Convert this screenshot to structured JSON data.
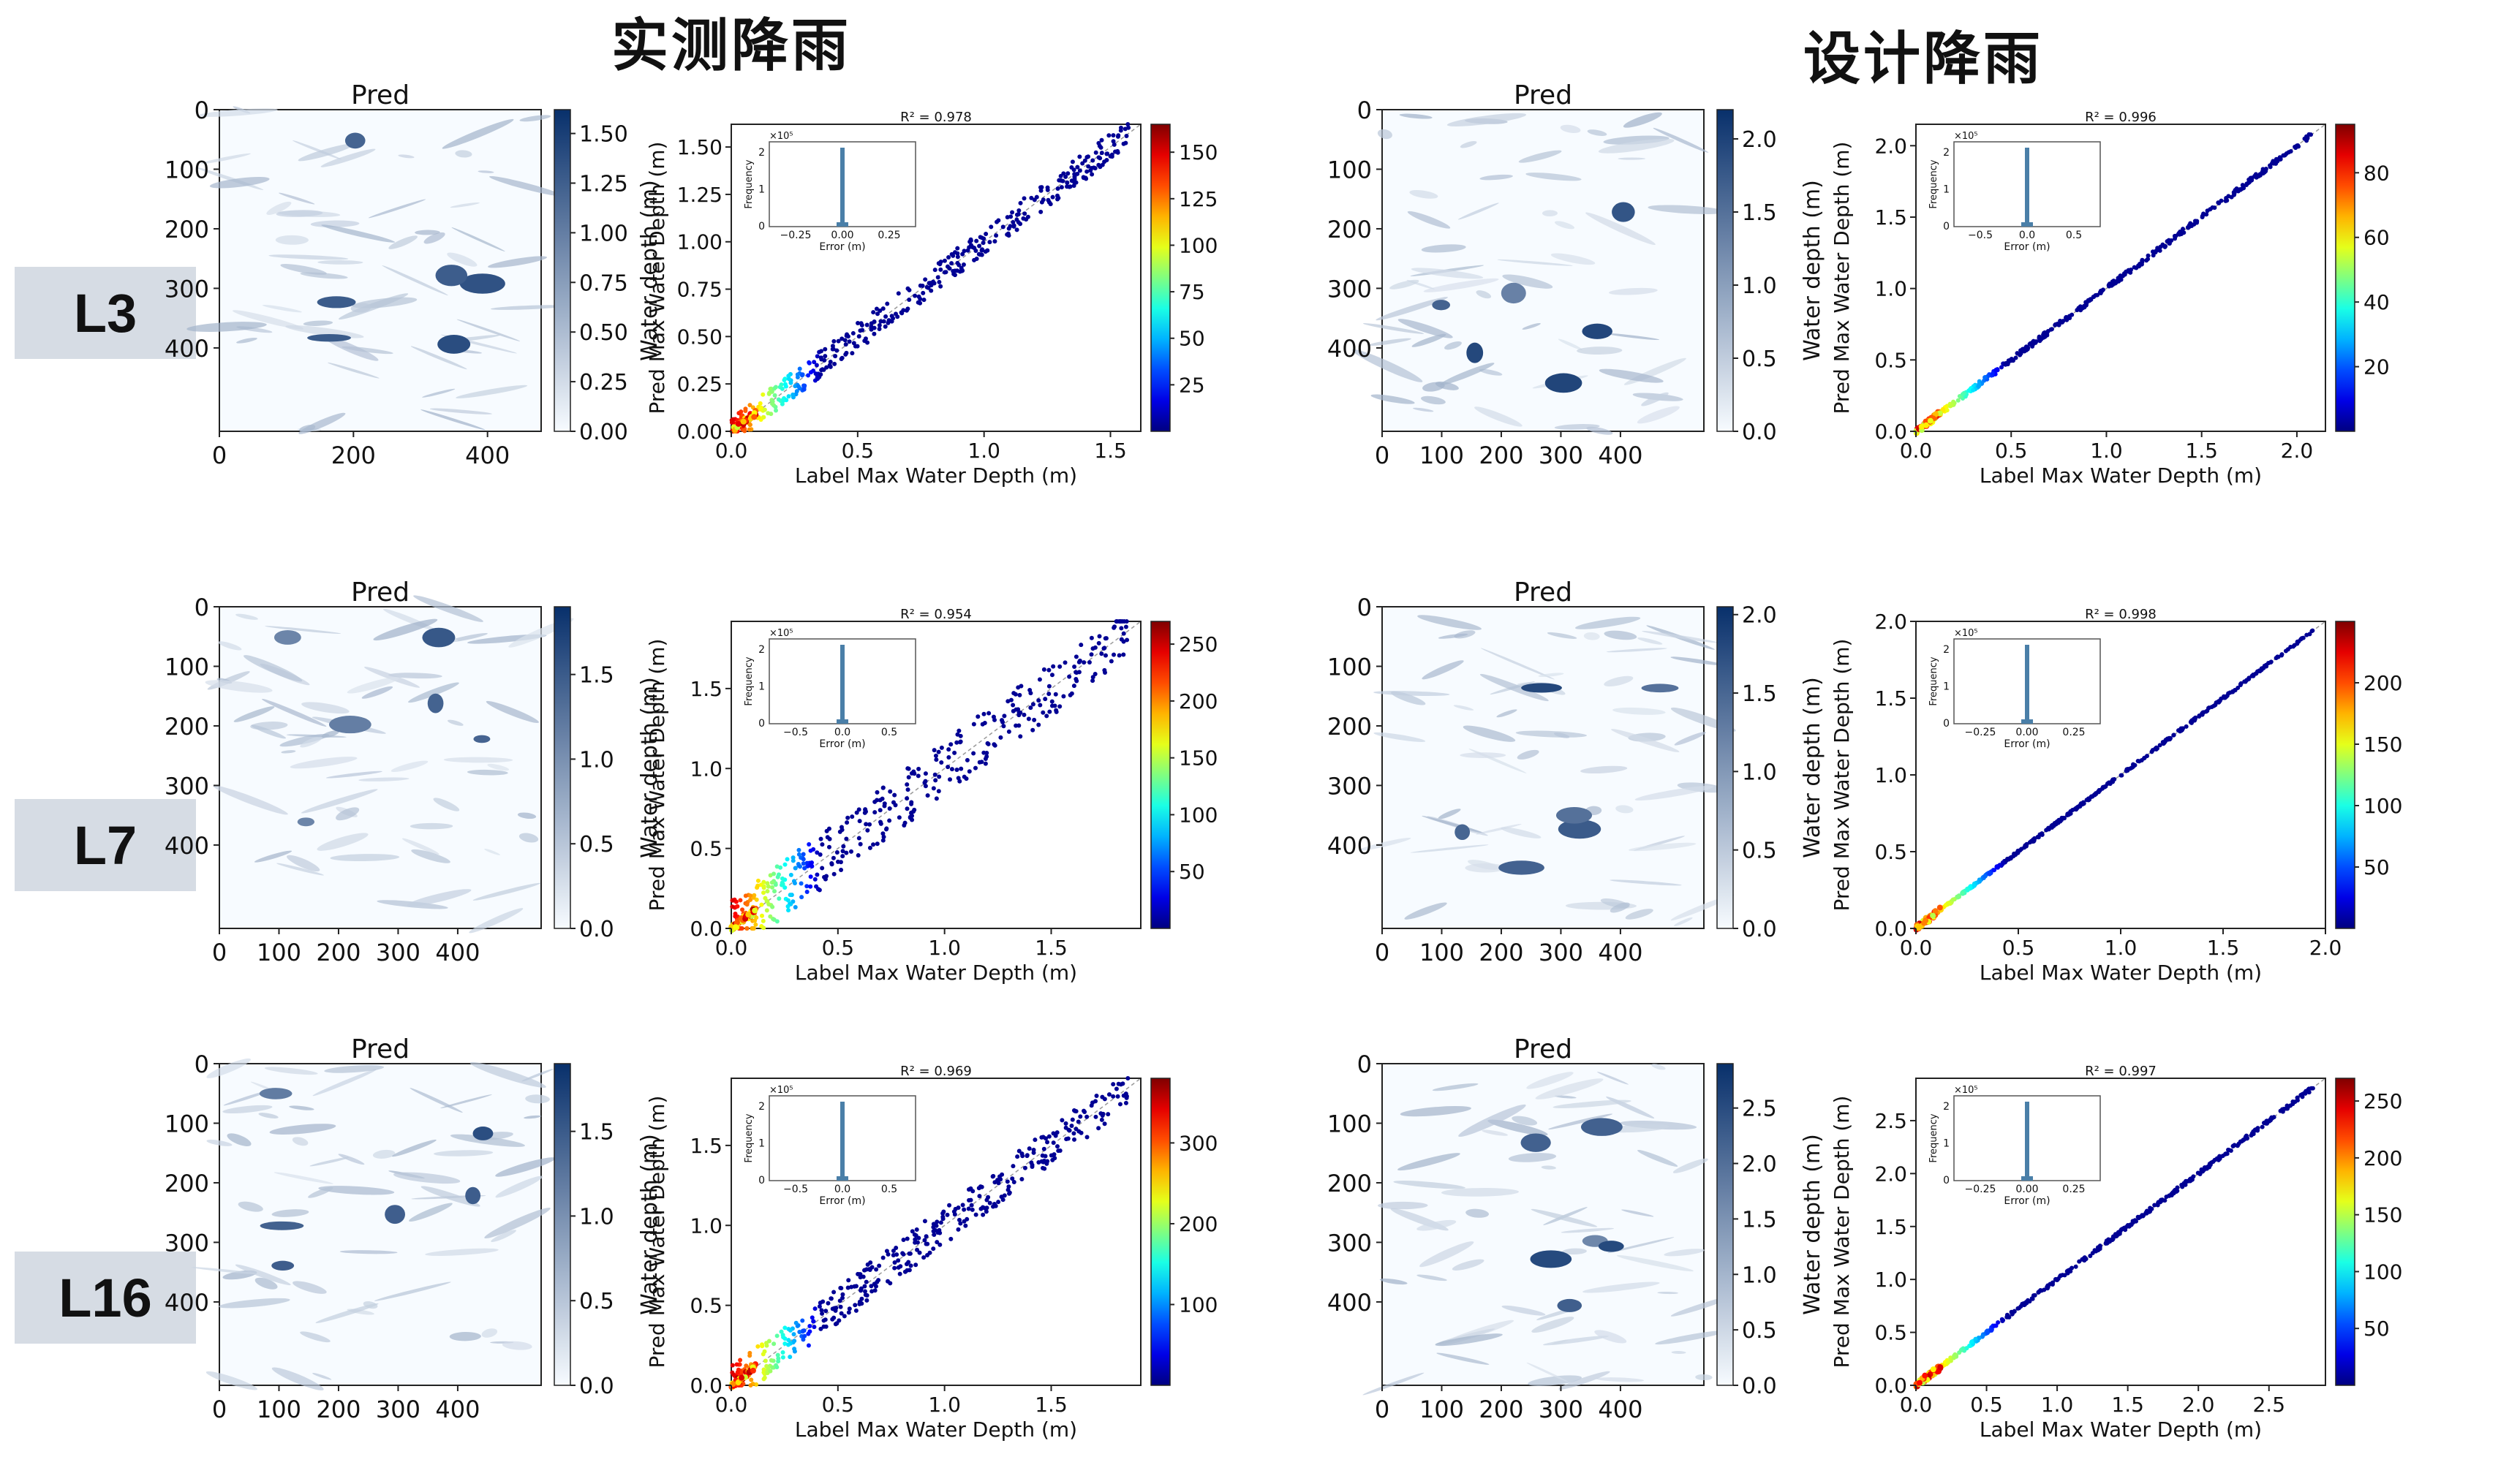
{
  "headers": {
    "measured": "实测降雨",
    "design": "设计降雨"
  },
  "rows": [
    {
      "label": "L3"
    },
    {
      "label": "L7"
    },
    {
      "label": "L16"
    }
  ],
  "chart_data": [
    {
      "id": "L3-measured-map",
      "type": "heatmap",
      "title": "Pred",
      "x_ticks": [
        "0",
        "200",
        "400"
      ],
      "y_ticks": [
        "0",
        "100",
        "200",
        "300",
        "400"
      ],
      "colorbar_label": "Water depth (m)",
      "colorbar_ticks": [
        "0.00",
        "0.25",
        "0.50",
        "0.75",
        "1.00",
        "1.25",
        "1.50"
      ],
      "colorbar_max": 1.62,
      "colormap": "Blues"
    },
    {
      "id": "L3-measured-scatter",
      "type": "scatter",
      "title": "R² = 0.978",
      "r2": 0.978,
      "xlabel": "Label Max Water Depth (m)",
      "ylabel": "Pred Max Water Depth (m)",
      "xlim": [
        0,
        1.62
      ],
      "ylim": [
        0,
        1.62
      ],
      "x_ticks": [
        "0.0",
        "0.5",
        "1.0",
        "1.5"
      ],
      "y_ticks": [
        "0.00",
        "0.25",
        "0.50",
        "0.75",
        "1.00",
        "1.25",
        "1.50"
      ],
      "colorbar_ticks": [
        "25",
        "50",
        "75",
        "100",
        "125",
        "150"
      ],
      "colorbar_max": 165,
      "inset": {
        "xlabel": "Error (m)",
        "ylabel": "Frequency",
        "x_ticks": [
          "−0.25",
          "0.00",
          "0.25"
        ],
        "y_ticks": [
          "0",
          "1",
          "2"
        ],
        "exponent": "×10⁵"
      }
    },
    {
      "id": "L3-design-map",
      "type": "heatmap",
      "title": "Pred",
      "x_ticks": [
        "0",
        "100",
        "200",
        "300",
        "400"
      ],
      "y_ticks": [
        "0",
        "100",
        "200",
        "300",
        "400"
      ],
      "colorbar_label": "Water depth (m)",
      "colorbar_ticks": [
        "0.0",
        "0.5",
        "1.0",
        "1.5",
        "2.0"
      ],
      "colorbar_max": 2.2,
      "colormap": "Blues"
    },
    {
      "id": "L3-design-scatter",
      "type": "scatter",
      "title": "R² = 0.996",
      "r2": 0.996,
      "xlabel": "Label Max Water Depth (m)",
      "ylabel": "Pred Max Water Depth (m)",
      "xlim": [
        0,
        2.15
      ],
      "ylim": [
        0,
        2.15
      ],
      "x_ticks": [
        "0.0",
        "0.5",
        "1.0",
        "1.5",
        "2.0"
      ],
      "y_ticks": [
        "0.0",
        "0.5",
        "1.0",
        "1.5",
        "2.0"
      ],
      "colorbar_ticks": [
        "20",
        "40",
        "60",
        "80"
      ],
      "colorbar_max": 95,
      "inset": {
        "xlabel": "Error (m)",
        "ylabel": "Frequency",
        "x_ticks": [
          "−0.5",
          "0.0",
          "0.5"
        ],
        "y_ticks": [
          "0",
          "1",
          "2"
        ],
        "exponent": "×10⁵"
      }
    },
    {
      "id": "L7-measured-map",
      "type": "heatmap",
      "title": "Pred",
      "x_ticks": [
        "0",
        "100",
        "200",
        "300",
        "400"
      ],
      "y_ticks": [
        "0",
        "100",
        "200",
        "300",
        "400"
      ],
      "colorbar_label": "Water depth (m)",
      "colorbar_ticks": [
        "0.0",
        "0.5",
        "1.0",
        "1.5"
      ],
      "colorbar_max": 1.9,
      "colormap": "Blues"
    },
    {
      "id": "L7-measured-scatter",
      "type": "scatter",
      "title": "R² = 0.954",
      "r2": 0.954,
      "xlabel": "Label Max Water Depth (m)",
      "ylabel": "Pred Max Water Depth (m)",
      "xlim": [
        0,
        1.92
      ],
      "ylim": [
        0,
        1.92
      ],
      "x_ticks": [
        "0.0",
        "0.5",
        "1.0",
        "1.5"
      ],
      "y_ticks": [
        "0.0",
        "0.5",
        "1.0",
        "1.5"
      ],
      "colorbar_ticks": [
        "50",
        "100",
        "150",
        "200",
        "250"
      ],
      "colorbar_max": 270,
      "inset": {
        "xlabel": "Error (m)",
        "ylabel": "Frequency",
        "x_ticks": [
          "−0.5",
          "0.0",
          "0.5"
        ],
        "y_ticks": [
          "0",
          "1",
          "2"
        ],
        "exponent": "×10⁵"
      }
    },
    {
      "id": "L7-design-map",
      "type": "heatmap",
      "title": "Pred",
      "x_ticks": [
        "0",
        "100",
        "200",
        "300",
        "400"
      ],
      "y_ticks": [
        "0",
        "100",
        "200",
        "300",
        "400"
      ],
      "colorbar_label": "Water depth (m)",
      "colorbar_ticks": [
        "0.0",
        "0.5",
        "1.0",
        "1.5",
        "2.0"
      ],
      "colorbar_max": 2.05,
      "colormap": "Blues"
    },
    {
      "id": "L7-design-scatter",
      "type": "scatter",
      "title": "R² = 0.998",
      "r2": 0.998,
      "xlabel": "Label Max Water Depth (m)",
      "ylabel": "Pred Max Water Depth (m)",
      "xlim": [
        0,
        2.0
      ],
      "ylim": [
        0,
        2.0
      ],
      "x_ticks": [
        "0.0",
        "0.5",
        "1.0",
        "1.5",
        "2.0"
      ],
      "y_ticks": [
        "0.0",
        "0.5",
        "1.0",
        "1.5",
        "2.0"
      ],
      "colorbar_ticks": [
        "50",
        "100",
        "150",
        "200"
      ],
      "colorbar_max": 250,
      "inset": {
        "xlabel": "Error (m)",
        "ylabel": "Frequency",
        "x_ticks": [
          "−0.25",
          "0.00",
          "0.25"
        ],
        "y_ticks": [
          "0",
          "1",
          "2"
        ],
        "exponent": "×10⁵"
      }
    },
    {
      "id": "L16-measured-map",
      "type": "heatmap",
      "title": "Pred",
      "x_ticks": [
        "0",
        "100",
        "200",
        "300",
        "400"
      ],
      "y_ticks": [
        "0",
        "100",
        "200",
        "300",
        "400"
      ],
      "colorbar_label": "Water depth (m)",
      "colorbar_ticks": [
        "0.0",
        "0.5",
        "1.0",
        "1.5"
      ],
      "colorbar_max": 1.9,
      "colormap": "Blues"
    },
    {
      "id": "L16-measured-scatter",
      "type": "scatter",
      "title": "R² = 0.969",
      "r2": 0.969,
      "xlabel": "Label Max Water Depth (m)",
      "ylabel": "Pred Max Water Depth (m)",
      "xlim": [
        0,
        1.92
      ],
      "ylim": [
        0,
        1.92
      ],
      "x_ticks": [
        "0.0",
        "0.5",
        "1.0",
        "1.5"
      ],
      "y_ticks": [
        "0.0",
        "0.5",
        "1.0",
        "1.5"
      ],
      "colorbar_ticks": [
        "100",
        "200",
        "300"
      ],
      "colorbar_max": 380,
      "inset": {
        "xlabel": "Error (m)",
        "ylabel": "Frequency",
        "x_ticks": [
          "−0.5",
          "0.0",
          "0.5"
        ],
        "y_ticks": [
          "0",
          "1",
          "2"
        ],
        "exponent": "×10⁵"
      }
    },
    {
      "id": "L16-design-map",
      "type": "heatmap",
      "title": "Pred",
      "x_ticks": [
        "0",
        "100",
        "200",
        "300",
        "400"
      ],
      "y_ticks": [
        "0",
        "100",
        "200",
        "300",
        "400"
      ],
      "colorbar_label": "Water depth (m)",
      "colorbar_ticks": [
        "0.0",
        "0.5",
        "1.0",
        "1.5",
        "2.0",
        "2.5"
      ],
      "colorbar_max": 2.9,
      "colormap": "Blues"
    },
    {
      "id": "L16-design-scatter",
      "type": "scatter",
      "title": "R² = 0.997",
      "r2": 0.997,
      "xlabel": "Label Max Water Depth (m)",
      "ylabel": "Pred Max Water Depth (m)",
      "xlim": [
        0,
        2.9
      ],
      "ylim": [
        0,
        2.9
      ],
      "x_ticks": [
        "0.0",
        "0.5",
        "1.0",
        "1.5",
        "2.0",
        "2.5"
      ],
      "y_ticks": [
        "0.0",
        "0.5",
        "1.0",
        "1.5",
        "2.0",
        "2.5"
      ],
      "colorbar_ticks": [
        "50",
        "100",
        "150",
        "200",
        "250"
      ],
      "colorbar_max": 270,
      "inset": {
        "xlabel": "Error (m)",
        "ylabel": "Frequency",
        "x_ticks": [
          "−0.25",
          "0.00",
          "0.25"
        ],
        "y_ticks": [
          "0",
          "1",
          "2"
        ],
        "exponent": "×10⁵"
      }
    }
  ]
}
